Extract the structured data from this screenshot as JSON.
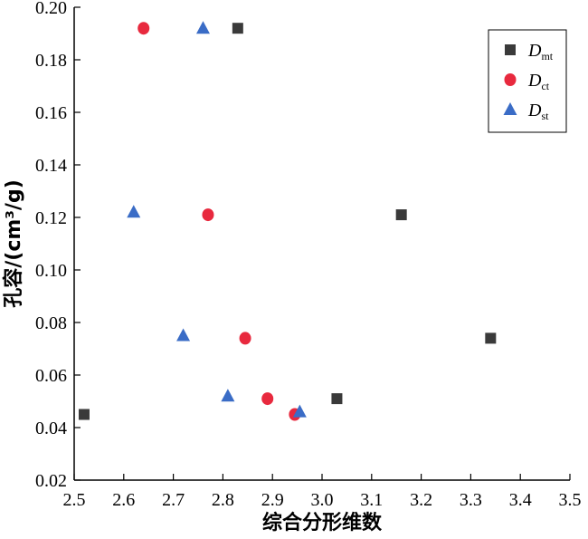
{
  "chart_data": {
    "type": "scatter",
    "xlabel": "综合分形维数",
    "ylabel": "孔容/(cm³/g)",
    "xlim": [
      2.5,
      3.5
    ],
    "ylim": [
      0.02,
      0.2
    ],
    "x_ticks": [
      "2.5",
      "2.6",
      "2.7",
      "2.8",
      "2.9",
      "3.0",
      "3.1",
      "3.2",
      "3.3",
      "3.4",
      "3.5"
    ],
    "y_ticks": [
      "0.02",
      "0.04",
      "0.06",
      "0.08",
      "0.10",
      "0.12",
      "0.14",
      "0.16",
      "0.18",
      "0.20"
    ],
    "grid": false,
    "legend_position": "top-right",
    "series": [
      {
        "name": "D",
        "subscript": "mt",
        "marker": "square",
        "color": "#3a3a3a",
        "points": [
          [
            2.83,
            0.192
          ],
          [
            3.16,
            0.121
          ],
          [
            3.34,
            0.074
          ],
          [
            3.03,
            0.051
          ],
          [
            2.52,
            0.045
          ]
        ]
      },
      {
        "name": "D",
        "subscript": "ct",
        "marker": "circle",
        "color": "#e8293e",
        "points": [
          [
            2.64,
            0.192
          ],
          [
            2.77,
            0.121
          ],
          [
            2.845,
            0.074
          ],
          [
            2.89,
            0.051
          ],
          [
            2.945,
            0.045
          ]
        ]
      },
      {
        "name": "D",
        "subscript": "st",
        "marker": "triangle",
        "color": "#3a6cc6",
        "points": [
          [
            2.76,
            0.192
          ],
          [
            2.62,
            0.122
          ],
          [
            2.72,
            0.075
          ],
          [
            2.81,
            0.052
          ],
          [
            2.955,
            0.046
          ]
        ]
      }
    ]
  }
}
